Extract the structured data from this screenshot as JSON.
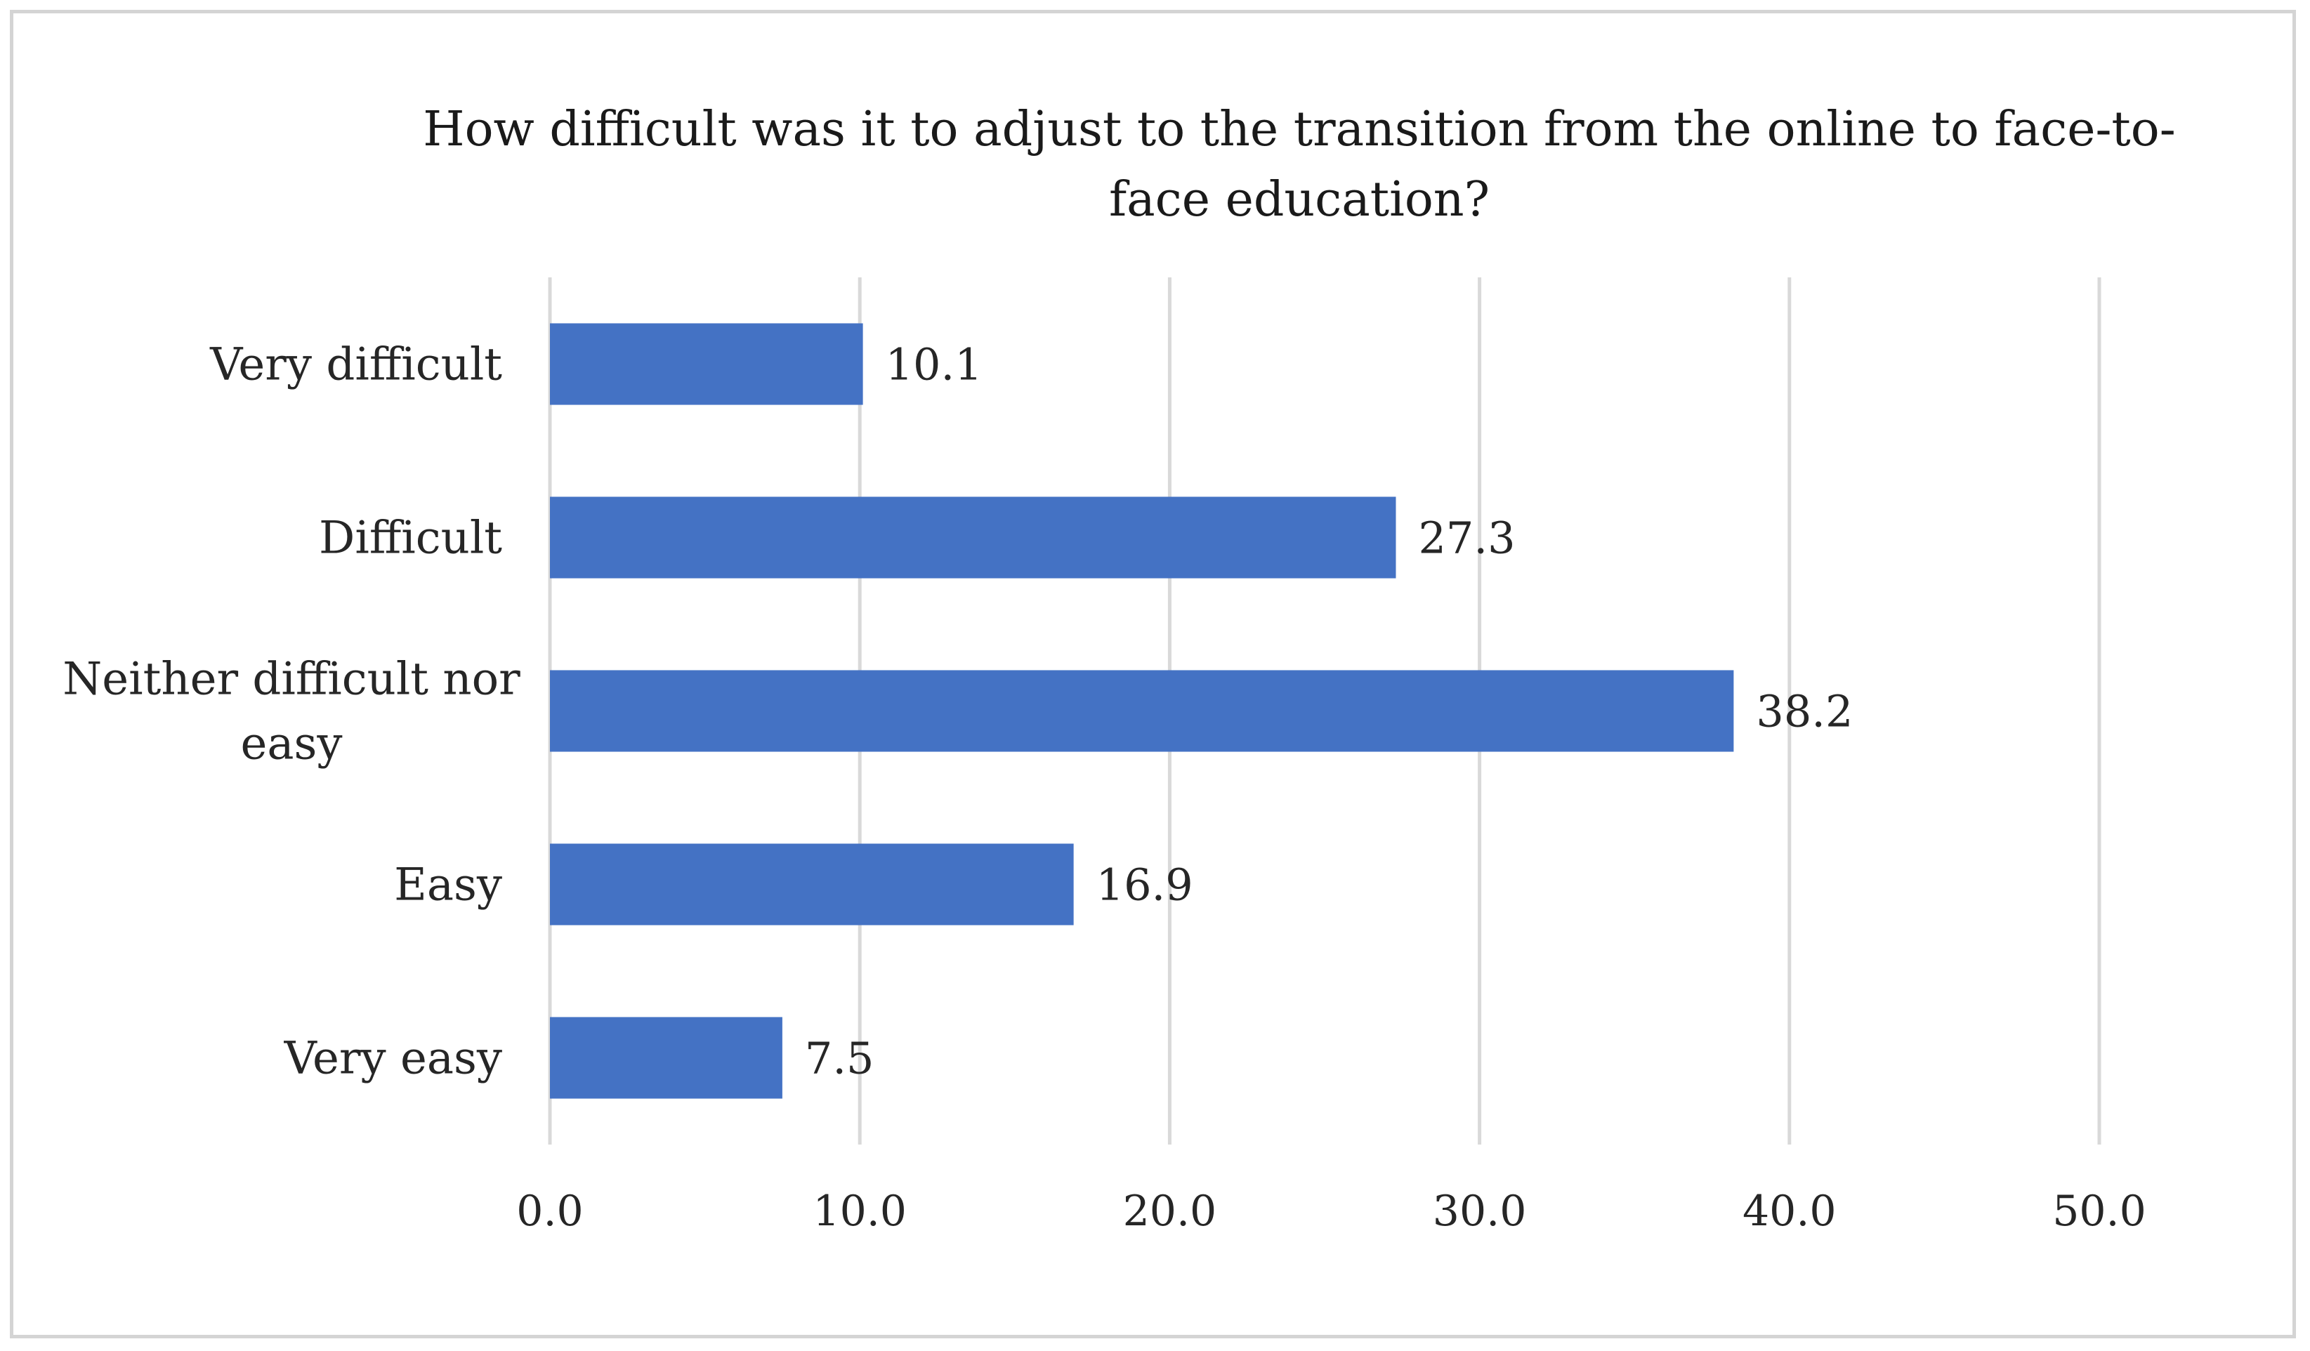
{
  "chart_data": {
    "type": "bar",
    "orientation": "horizontal",
    "title": "How difficult  was it to adjust to the transition from the online to face-to-face education?",
    "categories": [
      "Very difficult",
      "Difficult",
      "Neither difficult nor easy",
      "Easy",
      "Very easy"
    ],
    "category_lines": [
      [
        "Very difficult"
      ],
      [
        "Difficult"
      ],
      [
        "Neither difficult nor",
        "easy"
      ],
      [
        "Easy"
      ],
      [
        "Very easy"
      ]
    ],
    "values": [
      10.1,
      27.3,
      38.2,
      16.9,
      7.5
    ],
    "data_labels": [
      "10.1",
      "27.3",
      "38.2",
      "16.9",
      "7.5"
    ],
    "xlim": [
      0,
      50
    ],
    "xticks": [
      0,
      10,
      20,
      30,
      40,
      50
    ],
    "xtick_labels": [
      "0.0",
      "10.0",
      "20.0",
      "30.0",
      "40.0",
      "50.0"
    ],
    "grid": true,
    "legend": "none",
    "bar_color": "#4472C4",
    "grid_color": "#D9D9D9"
  }
}
